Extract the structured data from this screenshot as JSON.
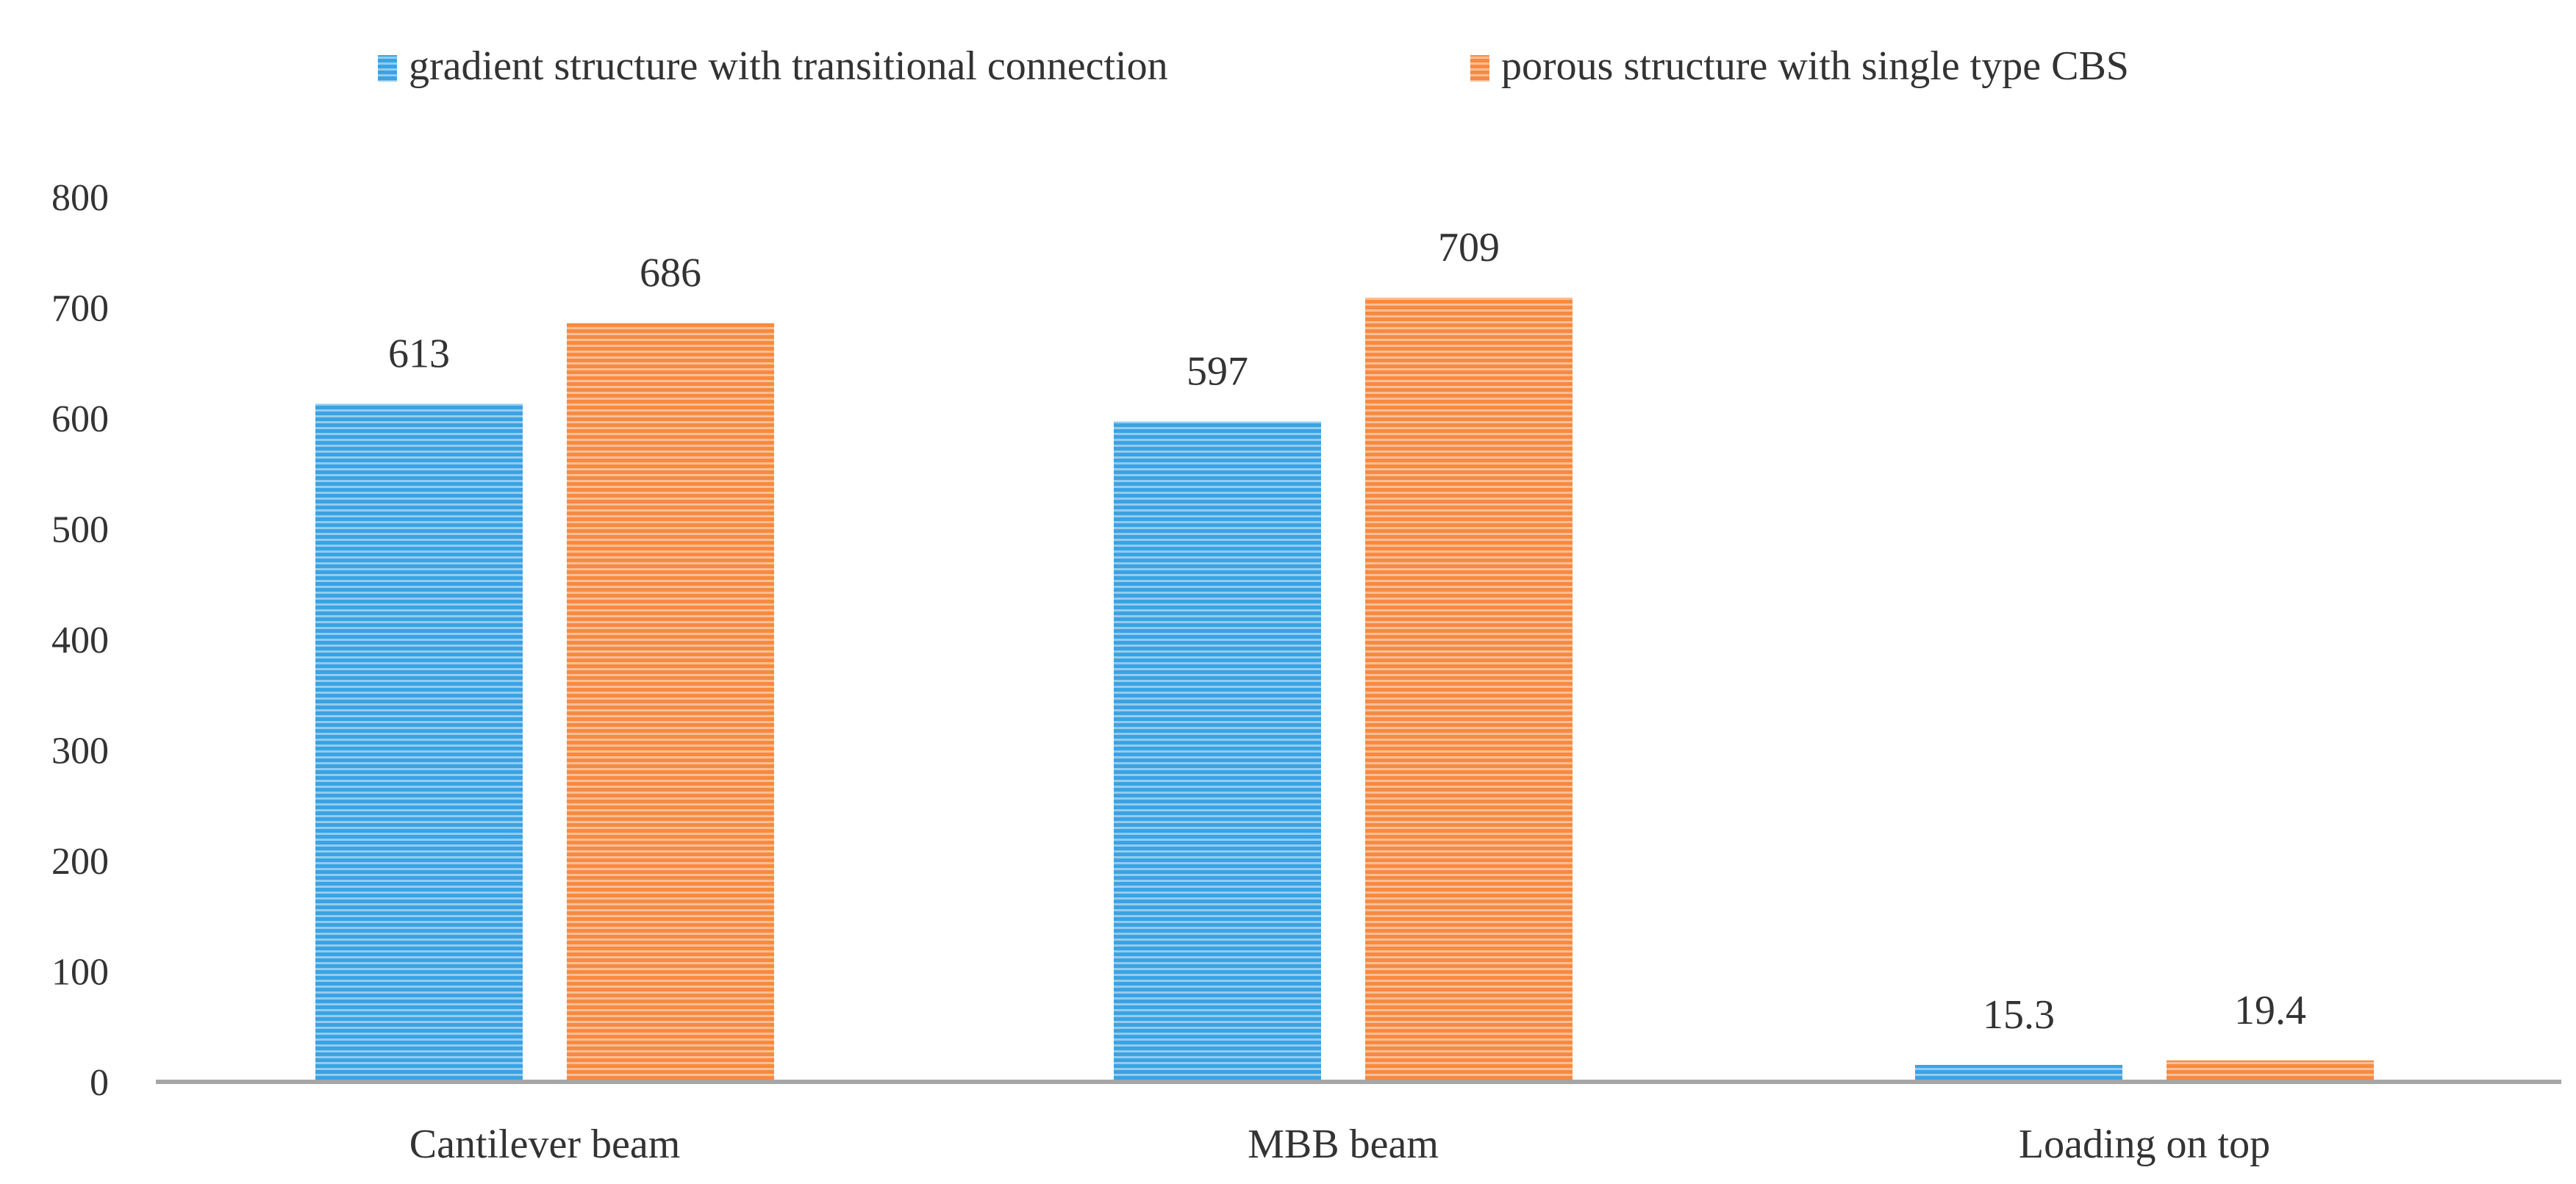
{
  "chart_data": {
    "type": "bar",
    "title": "",
    "xlabel": "",
    "ylabel": "",
    "categories": [
      "Cantilever beam",
      "MBB beam",
      "Loading on top"
    ],
    "series": [
      {
        "name": "gradient structure with transitional connection",
        "values": [
          613,
          597,
          15.3
        ],
        "color": "#3aa3e3"
      },
      {
        "name": "porous structure with single type CBS",
        "values": [
          686,
          709,
          19.4
        ],
        "color": "#f68a42"
      }
    ],
    "data_labels": [
      [
        "613",
        "597",
        "15.3"
      ],
      [
        "686",
        "709",
        "19.4"
      ]
    ],
    "yticks": [
      "0",
      "100",
      "200",
      "300",
      "400",
      "500",
      "600",
      "700",
      "800"
    ],
    "ylim": [
      0,
      800
    ],
    "grid": false,
    "legend_position": "top-center",
    "bar_pattern": "horizontal stripes"
  }
}
